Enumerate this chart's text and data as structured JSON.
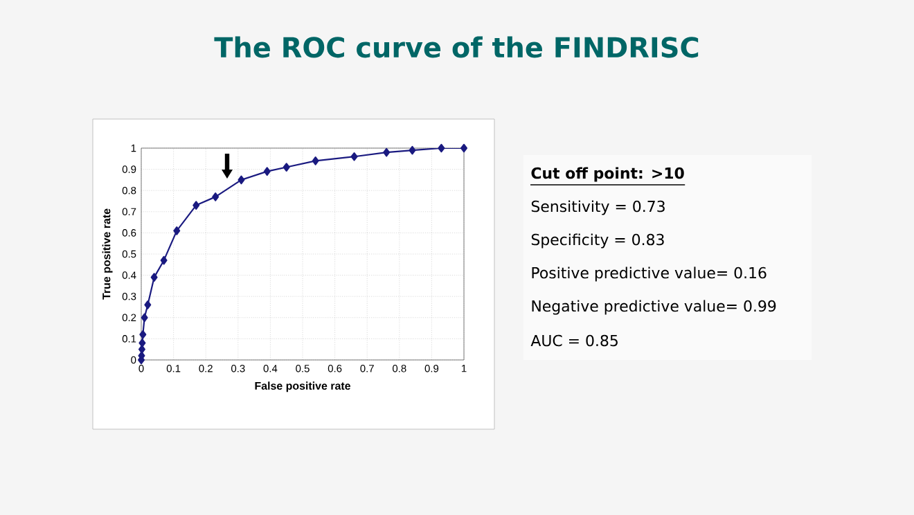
{
  "chart_data": {
    "type": "line",
    "title": "The ROC curve of the FINDRISC",
    "xlabel": "False positive rate",
    "ylabel": "True positive rate",
    "annotations": [
      "Cut off point:  >10",
      "Sensitivity = 0.73",
      "Specificity = 0.83",
      "Positive predictive value= 0.16",
      "Negative predictive value= 0.99",
      "AUC = 0.85"
    ],
    "series": [
      {
        "color": "#1a1a80",
        "x": [
          0,
          0.001,
          0.002,
          0.003,
          0.005,
          0.01,
          0.02,
          0.04,
          0.07,
          0.11,
          0.17,
          0.23,
          0.31,
          0.39,
          0.45,
          0.54,
          0.66,
          0.76,
          0.84,
          0.93,
          1
        ],
        "values": [
          0,
          0.02,
          0.05,
          0.08,
          0.12,
          0.2,
          0.26,
          0.39,
          0.47,
          0.61,
          0.73,
          0.77,
          0.85,
          0.89,
          0.91,
          0.94,
          0.96,
          0.98,
          0.99,
          1,
          1
        ]
      }
    ],
    "xlim": [
      0,
      1
    ],
    "ylim": [
      0,
      1
    ],
    "xticks": [
      0,
      0.1,
      0.2,
      0.3,
      0.4,
      0.5,
      0.6,
      0.7,
      0.8,
      0.9,
      1
    ],
    "yticks": [
      0,
      0.1,
      0.2,
      0.3,
      0.4,
      0.5,
      0.6,
      0.7,
      0.8,
      0.9,
      1
    ],
    "grid": true,
    "marker": "diamond",
    "line_style": "solid"
  }
}
